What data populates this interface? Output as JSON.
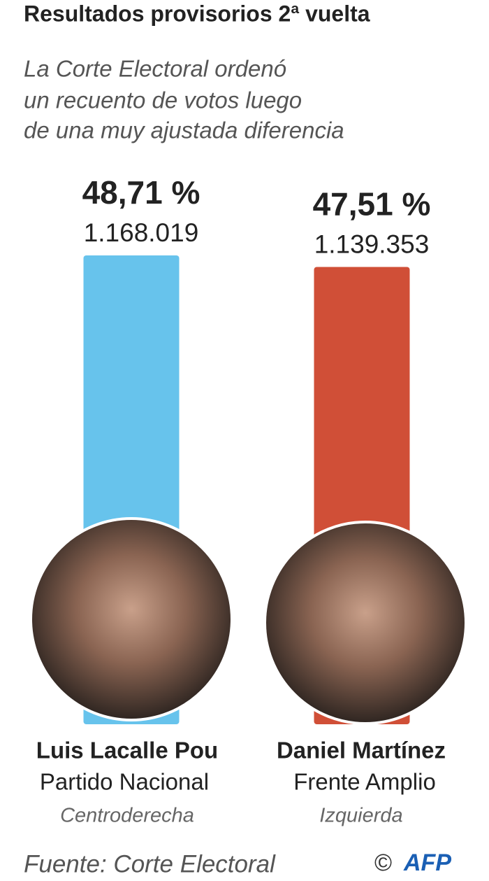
{
  "chart_data": {
    "type": "bar",
    "title": "Resultados provisorios 2ª vuelta",
    "subtitle": [
      "La Corte Electoral ordenó",
      "un recuento de votos luego",
      "de una muy ajustada diferencia"
    ],
    "categories": [
      "Luis Lacalle Pou",
      "Daniel Martínez"
    ],
    "parties": [
      "Partido Nacional",
      "Frente Amplio"
    ],
    "ideologies": [
      "Centroderecha",
      "Izquierda"
    ],
    "values": [
      48.71,
      47.51
    ],
    "value_labels": [
      "48,71 %",
      "47,51 %"
    ],
    "votes": [
      "1.168.019",
      "1.139.353"
    ],
    "colors": [
      "#67c3ec",
      "#d04f37"
    ],
    "source": "Fuente: Corte Electoral",
    "credit": {
      "symbol": "©",
      "agency": "AFP"
    }
  }
}
